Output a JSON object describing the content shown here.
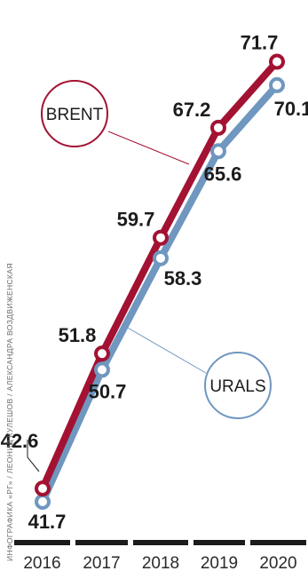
{
  "credit": "ИНФОГРАФИКА «РГ» / ЛЕОНИД КУЛЕШОВ / АЛЕКСАНДРА ВОЗДВИЖЕНСКАЯ",
  "chart_data": {
    "type": "line",
    "categories": [
      "2016",
      "2017",
      "2018",
      "2019",
      "2020"
    ],
    "series": [
      {
        "name": "BRENT",
        "values": [
          42.6,
          51.8,
          59.7,
          67.2,
          71.7
        ],
        "color": "#a31232"
      },
      {
        "name": "URALS",
        "values": [
          41.7,
          50.7,
          58.3,
          65.6,
          70.1
        ],
        "color": "#6f97bf"
      }
    ],
    "title": "",
    "xlabel": "",
    "ylabel": "",
    "ylim": [
      40,
      73
    ],
    "grid": false,
    "legend": "callout circles attached to each line"
  }
}
